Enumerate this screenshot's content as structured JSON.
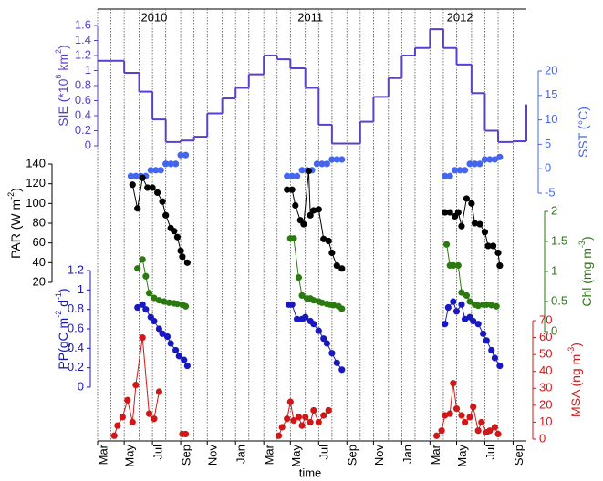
{
  "chart_data": {
    "type": "line",
    "xlabel": "time",
    "xlim": [
      2010.17,
      2012.75
    ],
    "xticks": [
      {
        "value": 2010.17,
        "label": "Mar"
      },
      {
        "value": 2010.33,
        "label": "May"
      },
      {
        "value": 2010.5,
        "label": "Jul"
      },
      {
        "value": 2010.67,
        "label": "Sep"
      },
      {
        "value": 2010.83,
        "label": "Nov"
      },
      {
        "value": 2011,
        "label": "Jan"
      },
      {
        "value": 2011.17,
        "label": "Mar"
      },
      {
        "value": 2011.33,
        "label": "May"
      },
      {
        "value": 2011.5,
        "label": "Jul"
      },
      {
        "value": 2011.67,
        "label": "Sep"
      },
      {
        "value": 2011.83,
        "label": "Nov"
      },
      {
        "value": 2012,
        "label": "Jan"
      },
      {
        "value": 2012.17,
        "label": "Mar"
      },
      {
        "value": 2012.33,
        "label": "May"
      },
      {
        "value": 2012.5,
        "label": "Jul"
      },
      {
        "value": 2012.67,
        "label": "Sep"
      }
    ],
    "xminorticks": [
      2010.17,
      2010.25,
      2010.33,
      2010.42,
      2010.5,
      2010.58,
      2010.67,
      2010.75,
      2010.83,
      2010.92,
      2011,
      2011.08,
      2011.17,
      2011.25,
      2011.33,
      2011.42,
      2011.5,
      2011.58,
      2011.67,
      2011.75,
      2011.83,
      2011.92,
      2012,
      2012.08,
      2012.17,
      2012.25,
      2012.33,
      2012.42,
      2012.5,
      2012.58,
      2012.67
    ],
    "grid": true,
    "annotations": [
      {
        "text": "2010",
        "x": 2010.51
      },
      {
        "text": "2011",
        "x": 2011.45
      },
      {
        "text": "2012",
        "x": 2012.35
      }
    ],
    "panels": [
      {
        "style": "step",
        "side": "left",
        "color": "#5a3fd0",
        "ylabel": [
          {
            "text": "SIE (*10"
          },
          {
            "sup": "6"
          },
          {
            "text": " km"
          },
          {
            "sup": "2"
          },
          {
            "text": ")"
          }
        ],
        "ylim": [
          0,
          1.6
        ],
        "yticks": [
          0,
          0.2,
          0.4,
          0.6,
          0.8,
          1,
          1.2,
          1.4,
          1.6
        ],
        "x": [
          2010.17,
          2010.25,
          2010.33,
          2010.42,
          2010.5,
          2010.58,
          2010.67,
          2010.75,
          2010.83,
          2010.92,
          2011,
          2011.08,
          2011.17,
          2011.25,
          2011.33,
          2011.42,
          2011.5,
          2011.58,
          2011.67,
          2011.75,
          2011.83,
          2011.92,
          2012,
          2012.08,
          2012.17,
          2012.25,
          2012.33,
          2012.42,
          2012.5,
          2012.58,
          2012.67,
          2012.75
        ],
        "values": [
          1.13,
          1.13,
          0.97,
          0.72,
          0.35,
          0.05,
          0.07,
          0.12,
          0.43,
          0.63,
          0.77,
          0.95,
          1.2,
          1.15,
          1.03,
          0.77,
          0.28,
          0.03,
          0.03,
          0.32,
          0.65,
          0.9,
          1.2,
          1.3,
          1.55,
          1.3,
          1.08,
          0.7,
          0.2,
          0.05,
          0.06,
          0.55
        ]
      },
      {
        "style": "dots",
        "side": "right",
        "color": "#4466ee",
        "ylabel": [
          {
            "text": "SST (°C)"
          }
        ],
        "ylim": [
          -5,
          20
        ],
        "yticks": [
          -5,
          0,
          5,
          10,
          15,
          20
        ],
        "x": [
          2010.37,
          2010.4,
          2010.43,
          2010.46,
          2010.49,
          2010.52,
          2010.55,
          2010.58,
          2010.61,
          2010.64,
          2010.67,
          2010.7,
          null,
          2011.31,
          2011.34,
          2011.37,
          2011.4,
          2011.43,
          2011.46,
          2011.49,
          2011.52,
          2011.55,
          2011.58,
          2011.61,
          2011.64,
          null,
          2012.26,
          2012.29,
          2012.32,
          2012.35,
          2012.38,
          2012.41,
          2012.44,
          2012.47,
          2012.5,
          2012.53,
          2012.56,
          2012.59
        ],
        "values": [
          -1.5,
          -1.5,
          -1.5,
          -1.5,
          -0.3,
          -0.3,
          -0.3,
          1,
          1,
          1,
          2.8,
          2.8,
          null,
          -1.5,
          -1.5,
          -1.5,
          -0.3,
          -0.3,
          -0.3,
          1,
          1,
          1,
          1.9,
          1.9,
          1.9,
          null,
          -1.5,
          -1.5,
          -0.3,
          -0.3,
          -0.3,
          1,
          1,
          1,
          1.9,
          1.9,
          1.9,
          2.4
        ]
      },
      {
        "style": "line",
        "side": "left",
        "color": "#000000",
        "ylabel": [
          {
            "text": "PAR (W m"
          },
          {
            "sup": "-2"
          },
          {
            "text": ")"
          }
        ],
        "ylim": [
          20,
          140
        ],
        "yticks": [
          20,
          40,
          60,
          80,
          100,
          120,
          140
        ],
        "x": [
          2010.38,
          2010.41,
          2010.44,
          2010.47,
          2010.5,
          2010.53,
          2010.56,
          2010.58,
          2010.61,
          2010.63,
          2010.65,
          2010.67,
          2010.68,
          2010.71,
          null,
          2011.31,
          2011.34,
          2011.36,
          2011.39,
          2011.41,
          2011.44,
          2011.45,
          2011.47,
          2011.5,
          2011.53,
          2011.56,
          2011.58,
          2011.61,
          2011.64,
          null,
          2012.26,
          2012.29,
          2012.32,
          2012.34,
          2012.36,
          2012.39,
          2012.42,
          2012.44,
          2012.47,
          2012.5,
          2012.52,
          2012.55,
          2012.58,
          2012.59
        ],
        "values": [
          119,
          95,
          126,
          116,
          116,
          111,
          102,
          88,
          75,
          72,
          66,
          52,
          46,
          40,
          null,
          114,
          114,
          98,
          83,
          79,
          133,
          88,
          93,
          94,
          64,
          62,
          50,
          37,
          34,
          null,
          91,
          91,
          87,
          91,
          77,
          105,
          100,
          80,
          79,
          71,
          57,
          57,
          50,
          37
        ]
      },
      {
        "style": "line",
        "side": "right",
        "color": "#2a7a10",
        "ylabel": [
          {
            "text": "Chl (mg m"
          },
          {
            "sup": "-3"
          },
          {
            "text": ")"
          }
        ],
        "ylim": [
          0,
          2
        ],
        "yticks": [
          0,
          0.5,
          1,
          1.5,
          2
        ],
        "x": [
          2010.41,
          2010.44,
          2010.46,
          2010.48,
          2010.51,
          2010.54,
          2010.57,
          2010.6,
          2010.63,
          2010.65,
          2010.68,
          2010.7,
          null,
          2011.33,
          2011.35,
          2011.38,
          2011.4,
          2011.43,
          2011.45,
          2011.47,
          2011.5,
          2011.52,
          2011.55,
          2011.57,
          2011.59,
          2011.62,
          2011.64,
          null,
          2012.27,
          2012.29,
          2012.31,
          2012.34,
          2012.36,
          2012.39,
          2012.41,
          2012.44,
          2012.46,
          2012.49,
          2012.51,
          2012.54,
          2012.57
        ],
        "values": [
          1.05,
          1.2,
          0.92,
          0.64,
          0.56,
          0.52,
          0.5,
          0.48,
          0.47,
          0.46,
          0.45,
          0.42,
          null,
          1.55,
          1.55,
          0.9,
          0.6,
          0.55,
          0.55,
          0.52,
          0.5,
          0.48,
          0.46,
          0.45,
          0.44,
          0.42,
          0.38,
          null,
          1.45,
          1.1,
          1.1,
          1.1,
          0.65,
          0.6,
          0.5,
          0.45,
          0.43,
          0.45,
          0.45,
          0.44,
          0.42
        ]
      },
      {
        "style": "line",
        "side": "left",
        "color": "#1818c0",
        "ylabel": [
          {
            "text": "PP(gC m"
          },
          {
            "sup": "-2"
          },
          {
            "text": " d"
          },
          {
            "sup": "-1"
          },
          {
            "text": ")"
          }
        ],
        "ylim": [
          0,
          1.2
        ],
        "yticks": [
          0,
          0.2,
          0.4,
          0.6,
          0.8,
          1,
          1.2
        ],
        "x": [
          2010.41,
          2010.44,
          2010.46,
          2010.49,
          2010.51,
          2010.54,
          2010.56,
          2010.59,
          2010.61,
          2010.64,
          2010.66,
          2010.69,
          2010.71,
          null,
          2011.32,
          2011.34,
          2011.37,
          2011.4,
          2011.42,
          2011.45,
          2011.47,
          2011.5,
          2011.53,
          2011.55,
          2011.58,
          2011.61,
          2011.64,
          null,
          2012.26,
          2012.28,
          2012.31,
          2012.33,
          2012.36,
          2012.38,
          2012.41,
          2012.43,
          2012.46,
          2012.49,
          2012.51,
          2012.54,
          2012.56,
          2012.59
        ],
        "values": [
          0.82,
          0.85,
          0.8,
          0.72,
          0.68,
          0.6,
          0.55,
          0.52,
          0.45,
          0.38,
          0.32,
          0.28,
          0.22,
          null,
          0.85,
          0.85,
          0.7,
          0.7,
          0.72,
          0.68,
          0.65,
          0.58,
          0.5,
          0.45,
          0.35,
          0.25,
          0.18,
          null,
          0.65,
          0.82,
          0.88,
          0.78,
          0.85,
          0.7,
          0.72,
          0.68,
          0.65,
          0.55,
          0.48,
          0.38,
          0.3,
          0.22
        ]
      },
      {
        "style": "line",
        "side": "right",
        "color": "#d01818",
        "ylabel": [
          {
            "text": "MSA (ng m"
          },
          {
            "sup": "-3"
          },
          {
            "text": ")"
          }
        ],
        "ylim": [
          0,
          70
        ],
        "yticks": [
          0,
          10,
          20,
          30,
          40,
          50,
          60,
          70
        ],
        "x": [
          2010.27,
          2010.29,
          2010.32,
          2010.35,
          2010.38,
          2010.4,
          2010.44,
          2010.48,
          2010.51,
          2010.54,
          null,
          2010.68,
          2010.7,
          null,
          2011.26,
          2011.28,
          2011.31,
          2011.33,
          2011.35,
          2011.38,
          2011.4,
          2011.42,
          2011.45,
          2011.47,
          2011.5,
          2011.53,
          2011.56,
          null,
          2012.21,
          2012.24,
          2012.26,
          2012.29,
          2012.31,
          2012.33,
          2012.36,
          2012.38,
          2012.41,
          2012.43,
          2012.46,
          2012.48,
          2012.51,
          2012.53,
          2012.56,
          2012.58
        ],
        "values": [
          2,
          8,
          13,
          23,
          10,
          32,
          60,
          15,
          12,
          28,
          null,
          3,
          3,
          null,
          2,
          7,
          12,
          22,
          11,
          13,
          8,
          13,
          10,
          17,
          10,
          14,
          17,
          null,
          2,
          5,
          14,
          15,
          33,
          18,
          14,
          10,
          13,
          19,
          5,
          10,
          4,
          5,
          7,
          3
        ]
      }
    ]
  }
}
